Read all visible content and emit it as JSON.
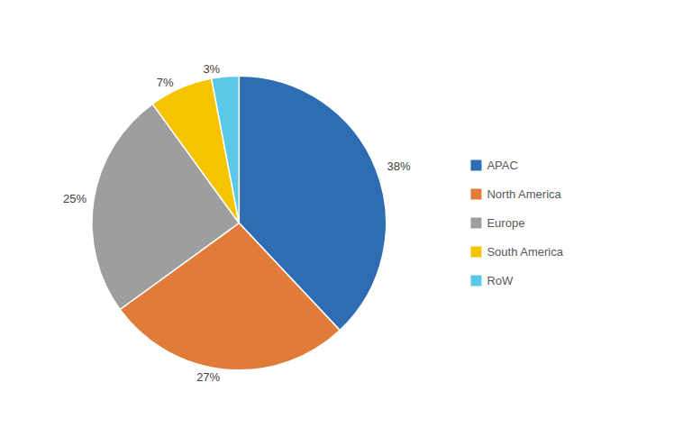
{
  "chart_data": {
    "type": "pie",
    "categories": [
      "APAC",
      "North America",
      "Europe",
      "South America",
      "RoW"
    ],
    "values": [
      38,
      27,
      25,
      7,
      3
    ],
    "value_labels": [
      "38%",
      "27%",
      "25%",
      "7%",
      "3%"
    ],
    "colors": [
      "#2E6DB4",
      "#E07B39",
      "#9E9E9E",
      "#F5C300",
      "#5BC8E8"
    ],
    "data_labels": true,
    "legend": "right"
  }
}
